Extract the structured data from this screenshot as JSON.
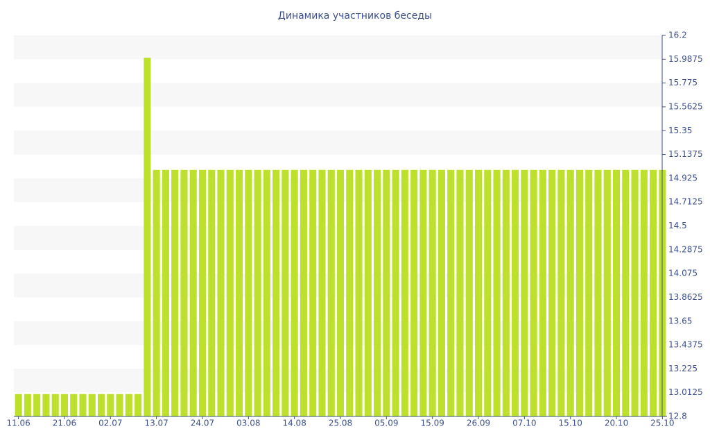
{
  "chart_data": {
    "type": "bar",
    "title": "Динамика участников беседы",
    "categories": [
      "11.06",
      null,
      null,
      null,
      null,
      "21.06",
      null,
      null,
      null,
      null,
      "02.07",
      null,
      null,
      null,
      null,
      "13.07",
      null,
      null,
      null,
      null,
      "24.07",
      null,
      null,
      null,
      null,
      "03.08",
      null,
      null,
      null,
      null,
      "14.08",
      null,
      null,
      null,
      null,
      "25.08",
      null,
      null,
      null,
      null,
      "05.09",
      null,
      null,
      null,
      null,
      "15.09",
      null,
      null,
      null,
      null,
      "26.09",
      null,
      null,
      null,
      null,
      "07.10",
      null,
      null,
      null,
      null,
      "15.10",
      null,
      null,
      null,
      null,
      "20.10",
      null,
      null,
      null,
      null,
      "25.10"
    ],
    "values": [
      13,
      13,
      13,
      13,
      13,
      13,
      13,
      13,
      13,
      13,
      13,
      13,
      13,
      13,
      16,
      15,
      15,
      15,
      15,
      15,
      15,
      15,
      15,
      15,
      15,
      15,
      15,
      15,
      15,
      15,
      15,
      15,
      15,
      15,
      15,
      15,
      15,
      15,
      15,
      15,
      15,
      15,
      15,
      15,
      15,
      15,
      15,
      15,
      15,
      15,
      15,
      15,
      15,
      15,
      15,
      15,
      15,
      15,
      15,
      15,
      15,
      15,
      15,
      15,
      15,
      15,
      15,
      15,
      15,
      15,
      15
    ],
    "color": "#bde02c",
    "ylim": [
      12.8,
      16.2
    ],
    "yticks": [
      12.8,
      13.0125,
      13.225,
      13.4375,
      13.65,
      13.8625,
      14.075,
      14.2875,
      14.5,
      14.7125,
      14.925,
      15.1375,
      15.35,
      15.5625,
      15.775,
      15.9875,
      16.2
    ],
    "grid": true
  }
}
